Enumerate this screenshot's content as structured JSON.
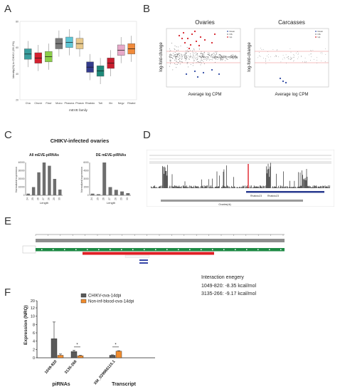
{
  "labels": {
    "a": "A",
    "b": "B",
    "c": "C",
    "d": "D",
    "e": "E",
    "f": "F"
  },
  "panel_a": {
    "ylabel": "Identity(%) to CHIKV (99.2%)",
    "xlabel": "mEVE family",
    "colors": [
      "#3a9e9e",
      "#d4202f",
      "#8ccf4a",
      "#7a7a7a",
      "#5fc7d6",
      "#e8c98c",
      "#343b8c",
      "#1f8a7a",
      "#c81e2e",
      "#e7a9c9",
      "#f08a3a"
    ],
    "chart_data": {
      "type": "box",
      "categories": [
        "Cha",
        "Chuvir",
        "Flavi",
        "Mono",
        "Phasma",
        "Phasm",
        "Rhabdo",
        "Toti",
        "Xin",
        "Negv",
        "Rhabd"
      ],
      "medians": [
        55,
        52,
        53,
        63,
        64,
        63,
        45,
        42,
        48,
        58,
        59
      ]
    }
  },
  "panel_b": {
    "left_title": "Ovaries",
    "right_title": "Carcasses",
    "ylabel": "log-fold-change",
    "xlabel": "Average log CPM",
    "legend": [
      "Down",
      "NS",
      "Up"
    ]
  },
  "panel_c": {
    "title": "CHIKV-infected ovaries",
    "left": {
      "subtitle": "All mEVE-piRNAs",
      "ylabel": "Normalized expression",
      "xlabel": "Length",
      "chart_data": {
        "type": "bar",
        "categories": [
          "24",
          "25",
          "26",
          "27",
          "28",
          "29",
          "30"
        ],
        "values": [
          2000,
          10000,
          28000,
          40000,
          36000,
          20000,
          7000
        ],
        "ylim": [
          0,
          40000
        ]
      }
    },
    "right": {
      "subtitle": "DE mEVE-piRNAs",
      "ylabel": "Normalized expression",
      "xlabel": "Length",
      "chart_data": {
        "type": "bar",
        "categories": [
          "24",
          "25",
          "26",
          "27",
          "28",
          "29",
          "30"
        ],
        "values": [
          300,
          200,
          6000,
          1500,
          1000,
          700,
          400
        ],
        "ylim": [
          0,
          6000
        ]
      }
    }
  },
  "panel_d": {
    "gene_label": "Rhabdo23",
    "gene_label2": "Rhabdo23",
    "track_label": "Ovaries(nt)"
  },
  "panel_e": {
    "interaction_title": "Interaction enegery",
    "interactions": [
      "1049-820: -8.35 kcal/mol",
      "3135-266: -9.17 kcal/mol"
    ]
  },
  "panel_f": {
    "ylabel": "Expression (NRQ)",
    "legend": [
      "CHIKV-ova-14dpi",
      "Non-inf-blood-ova-14dpi"
    ],
    "legend_colors": [
      "#5a5a5a",
      "#f08c2e"
    ],
    "group_labels": [
      "piRNAs",
      "Transcript"
    ],
    "significance": [
      "*",
      "*"
    ],
    "chart_data": {
      "type": "bar",
      "categories": [
        "1049-820",
        "3135-266",
        "XM_029966115.1"
      ],
      "series": [
        {
          "name": "CHIKV-ova-14dpi",
          "values": [
            4.6,
            1.5,
            0.6
          ],
          "errors": [
            4.0,
            0.3,
            0.1
          ]
        },
        {
          "name": "Non-inf-blood-ova-14dpi",
          "values": [
            0.6,
            0.5,
            1.6
          ],
          "errors": [
            0.3,
            0.1,
            0.1
          ]
        }
      ],
      "ylim": [
        0,
        20
      ],
      "yticks": [
        "0",
        "2",
        "4",
        "6",
        "8",
        "10",
        "12",
        "20"
      ]
    }
  }
}
